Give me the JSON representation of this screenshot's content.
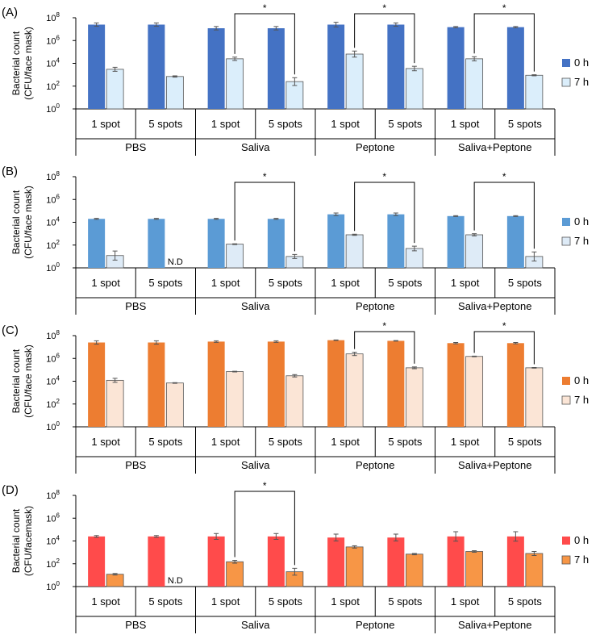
{
  "chart_data": [
    {
      "panel_label": "(A)",
      "type": "bar",
      "ylabel_line1": "Bacterial count",
      "ylabel_line2": "(CFU/face mask)",
      "yscale": "log10",
      "ylim": [
        1,
        100000000
      ],
      "yticks": [
        {
          "value": 1,
          "base": "10",
          "exp": "0"
        },
        {
          "value": 100,
          "base": "10",
          "exp": "2"
        },
        {
          "value": 10000,
          "base": "10",
          "exp": "4"
        },
        {
          "value": 1000000,
          "base": "10",
          "exp": "6"
        },
        {
          "value": 100000000,
          "base": "10",
          "exp": "8"
        }
      ],
      "groups": [
        "PBS",
        "Saliva",
        "Peptone",
        "Saliva+Peptone"
      ],
      "categories": [
        "1 spot",
        "5 spots",
        "1 spot",
        "5 spots",
        "1 spot",
        "5 spots",
        "1 spot",
        "5 spots"
      ],
      "series": [
        {
          "name": "0 h",
          "color": "#4472c4",
          "values": [
            25000000,
            25000000,
            12000000,
            12000000,
            25000000,
            25000000,
            15000000,
            15000000
          ],
          "err_upper": [
            35000000,
            35000000,
            17000000,
            17000000,
            40000000,
            35000000,
            17000000,
            17000000
          ]
        },
        {
          "name": "7 h",
          "color": "#dbeefb",
          "values": [
            3000,
            700,
            25000,
            250,
            65000,
            3500,
            25000,
            900
          ],
          "err_upper": [
            4500,
            800,
            35000,
            550,
            120000,
            5500,
            38000,
            1000
          ]
        }
      ],
      "significance": [
        {
          "label": "*",
          "from_category": 2,
          "to_category": 3
        },
        {
          "label": "*",
          "from_category": 4,
          "to_category": 5
        },
        {
          "label": "*",
          "from_category": 6,
          "to_category": 7
        }
      ],
      "nd_labels": []
    },
    {
      "panel_label": "(B)",
      "type": "bar",
      "ylabel_line1": "Bacterial count",
      "ylabel_line2": "(CFU/face mask)",
      "yscale": "log10",
      "ylim": [
        1,
        100000000
      ],
      "yticks": [
        {
          "value": 1,
          "base": "10",
          "exp": "0"
        },
        {
          "value": 100,
          "base": "10",
          "exp": "2"
        },
        {
          "value": 10000,
          "base": "10",
          "exp": "4"
        },
        {
          "value": 1000000,
          "base": "10",
          "exp": "6"
        },
        {
          "value": 100000000,
          "base": "10",
          "exp": "8"
        }
      ],
      "groups": [
        "PBS",
        "Saliva",
        "Peptone",
        "Saliva+Peptone"
      ],
      "categories": [
        "1 spot",
        "5 spots",
        "1 spot",
        "5 spots",
        "1 spot",
        "5 spots",
        "1 spot",
        "5 spots"
      ],
      "series": [
        {
          "name": "0 h",
          "color": "#5b9bd5",
          "values": [
            20000,
            20000,
            20000,
            20000,
            50000,
            50000,
            35000,
            35000
          ],
          "err_upper": [
            22000,
            22000,
            22000,
            22000,
            65000,
            65000,
            38000,
            38000
          ]
        },
        {
          "name": "7 h",
          "color": "#deebf7",
          "values": [
            12,
            null,
            120,
            10,
            800,
            50,
            800,
            10
          ],
          "err_upper": [
            30,
            null,
            130,
            15,
            900,
            80,
            1000,
            25
          ]
        }
      ],
      "significance": [
        {
          "label": "*",
          "from_category": 2,
          "to_category": 3
        },
        {
          "label": "*",
          "from_category": 4,
          "to_category": 5
        },
        {
          "label": "*",
          "from_category": 6,
          "to_category": 7
        }
      ],
      "nd_labels": [
        {
          "category": 1,
          "text": "N.D"
        }
      ]
    },
    {
      "panel_label": "(C)",
      "type": "bar",
      "ylabel_line1": "Bacterial count",
      "ylabel_line2": "(CFU/face mask)",
      "yscale": "log10",
      "ylim": [
        1,
        100000000
      ],
      "yticks": [
        {
          "value": 1,
          "base": "10",
          "exp": "0"
        },
        {
          "value": 100,
          "base": "10",
          "exp": "2"
        },
        {
          "value": 10000,
          "base": "10",
          "exp": "4"
        },
        {
          "value": 1000000,
          "base": "10",
          "exp": "6"
        },
        {
          "value": 100000000,
          "base": "10",
          "exp": "8"
        }
      ],
      "groups": [
        "PBS",
        "Saliva",
        "Peptone",
        "Saliva+Peptone"
      ],
      "categories": [
        "1 spot",
        "5 spots",
        "1 spot",
        "5 spots",
        "1 spot",
        "5 spots",
        "1 spot",
        "5 spots"
      ],
      "series": [
        {
          "name": "0 h",
          "color": "#ed7d31",
          "values": [
            25000000,
            25000000,
            30000000,
            30000000,
            40000000,
            35000000,
            22000000,
            22000000
          ],
          "err_upper": [
            35000000,
            35000000,
            35000000,
            35000000,
            42000000,
            37000000,
            25000000,
            25000000
          ]
        },
        {
          "name": "7 h",
          "color": "#fbe5d6",
          "values": [
            12000,
            7000,
            70000,
            30000,
            2500000,
            150000,
            1500000,
            150000
          ],
          "err_upper": [
            18000,
            7500,
            75000,
            38000,
            3500000,
            180000,
            1600000,
            160000
          ]
        }
      ],
      "significance": [
        {
          "label": "*",
          "from_category": 4,
          "to_category": 5
        },
        {
          "label": "*",
          "from_category": 6,
          "to_category": 7
        }
      ],
      "nd_labels": []
    },
    {
      "panel_label": "(D)",
      "type": "bar",
      "ylabel_line1": "Bacterial count",
      "ylabel_line2": "(CFU/facemask)",
      "yscale": "log10",
      "ylim": [
        1,
        100000000
      ],
      "yticks": [
        {
          "value": 1,
          "base": "10",
          "exp": "0"
        },
        {
          "value": 100,
          "base": "10",
          "exp": "2"
        },
        {
          "value": 10000,
          "base": "10",
          "exp": "4"
        },
        {
          "value": 1000000,
          "base": "10",
          "exp": "6"
        },
        {
          "value": 100000000,
          "base": "10",
          "exp": "8"
        }
      ],
      "groups": [
        "PBS",
        "Saliva",
        "Peptone",
        "Saliva+Peptone"
      ],
      "categories": [
        "1 spot",
        "5 spots",
        "1 spot",
        "5 spots",
        "1 spot",
        "5 spots",
        "1 spot",
        "5 spots"
      ],
      "series": [
        {
          "name": "0 h",
          "color": "#ff4b4b",
          "values": [
            25000,
            25000,
            25000,
            25000,
            20000,
            20000,
            25000,
            25000
          ],
          "err_upper": [
            30000,
            30000,
            45000,
            45000,
            40000,
            40000,
            65000,
            65000
          ]
        },
        {
          "name": "7 h",
          "color": "#f79646",
          "values": [
            12,
            null,
            150,
            20,
            3000,
            700,
            1200,
            800
          ],
          "err_upper": [
            14,
            null,
            200,
            40,
            3800,
            800,
            1400,
            1200
          ]
        }
      ],
      "significance": [
        {
          "label": "*",
          "from_category": 2,
          "to_category": 3
        }
      ],
      "nd_labels": [
        {
          "category": 1,
          "text": "N.D"
        }
      ]
    }
  ]
}
